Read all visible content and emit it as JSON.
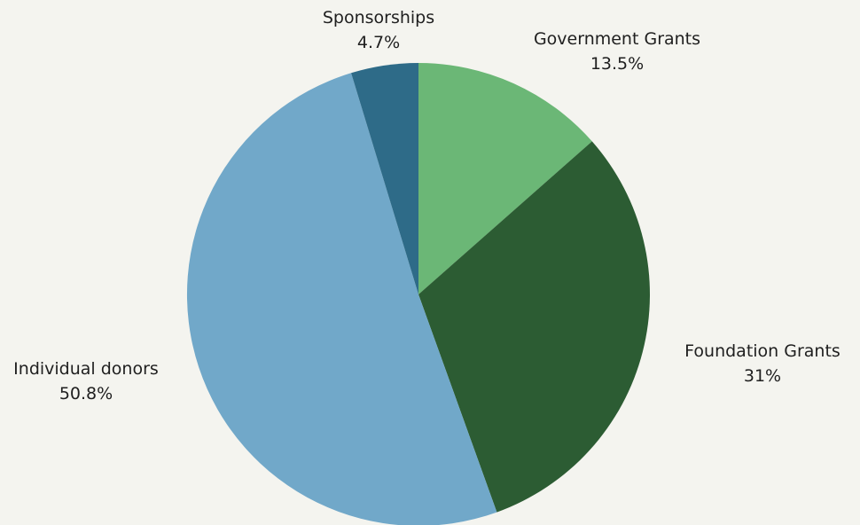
{
  "chart_data": {
    "type": "pie",
    "slices": [
      {
        "name": "Government Grants",
        "value": 13.5,
        "label": "13.5%",
        "color": "#6bb776"
      },
      {
        "name": "Foundation Grants",
        "value": 31,
        "label": "31%",
        "color": "#2c5c33"
      },
      {
        "name": "Individual donors",
        "value": 50.8,
        "label": "50.8%",
        "color": "#71a8c9"
      },
      {
        "name": "Sponsorships",
        "value": 4.7,
        "label": "4.7%",
        "color": "#2e6b88"
      }
    ],
    "start_angle_deg": 0,
    "direction": "clockwise",
    "legend": "none"
  }
}
